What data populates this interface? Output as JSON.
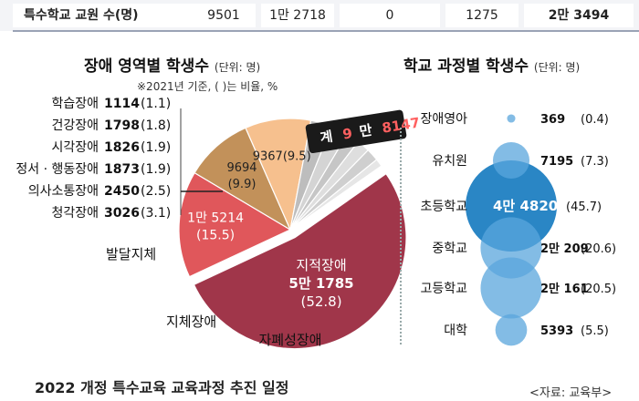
{
  "top_row": {
    "label": "특수학교 교원 수(명)",
    "values": [
      "9501",
      "1만 2718",
      "0",
      "1275",
      "2만 3494"
    ]
  },
  "left_chart": {
    "title": "장애 영역별 학생수",
    "unit": "(단위: 명)",
    "note": "※2021년 기준, ( )는 비율, %",
    "total_badge": {
      "prefix": "계",
      "num1": "9",
      "mid": "만",
      "num2": "8147"
    }
  },
  "right_chart": {
    "title": "학교 과정별 학생수",
    "unit": "(단위: 명)"
  },
  "chart_data": [
    {
      "type": "pie",
      "title": "장애 영역별 학생수",
      "unit": "명",
      "slices": [
        {
          "name": "지적장애",
          "value_text": "5만 1785",
          "value": 51785,
          "pct": "(52.8)",
          "percent": 52.8,
          "color": "#a0364a"
        },
        {
          "name": "자폐성장애",
          "value_text": "1만 5214",
          "value": 15214,
          "pct": "(15.5)",
          "percent": 15.5,
          "color": "#e0575b"
        },
        {
          "name": "지체장애",
          "value_text": "9694",
          "value": 9694,
          "pct": "(9.9)",
          "percent": 9.9,
          "color": "#c2915a"
        },
        {
          "name": "발달지체",
          "value_text": "9367",
          "value": 9367,
          "pct": "(9.5)",
          "percent": 9.5,
          "color": "#f6c08e"
        },
        {
          "name": "청각장애",
          "value_text": "3026",
          "value": 3026,
          "pct": "(3.1)",
          "percent": 3.1,
          "color": "#bdbdbd"
        },
        {
          "name": "의사소통장애",
          "value_text": "2450",
          "value": 2450,
          "pct": "(2.5)",
          "percent": 2.5,
          "color": "#d4d4d4"
        },
        {
          "name": "정서 · 행동장애",
          "value_text": "1873",
          "value": 1873,
          "pct": "(1.9)",
          "percent": 1.9,
          "color": "#c6c6c6"
        },
        {
          "name": "시각장애",
          "value_text": "1826",
          "value": 1826,
          "pct": "(1.9)",
          "percent": 1.9,
          "color": "#dedede"
        },
        {
          "name": "건강장애",
          "value_text": "1798",
          "value": 1798,
          "pct": "(1.8)",
          "percent": 1.8,
          "color": "#cfcfcf"
        },
        {
          "name": "학습장애",
          "value_text": "1114",
          "value": 1114,
          "pct": "(1.1)",
          "percent": 1.1,
          "color": "#e6e6e6"
        }
      ]
    },
    {
      "type": "scatter",
      "title": "학교 과정별 학생수",
      "unit": "명",
      "categories": [
        "장애영아",
        "유치원",
        "초등학교",
        "중학교",
        "고등학교",
        "대학"
      ],
      "value_texts": [
        "369",
        "7195",
        "4만 4820",
        "2만 209",
        "2만 161",
        "5393"
      ],
      "values": [
        369,
        7195,
        44820,
        20209,
        20161,
        5393
      ],
      "pct_texts": [
        "(0.4)",
        "(7.3)",
        "(45.7)",
        "(20.6)",
        "(20.5)",
        "(5.5)"
      ],
      "percents": [
        0.4,
        7.3,
        45.7,
        20.6,
        20.5,
        5.5
      ]
    }
  ],
  "footer": {
    "heading": "2022 개정 특수교육 교육과정 추진 일정",
    "source": "<자료: 교육부>"
  }
}
